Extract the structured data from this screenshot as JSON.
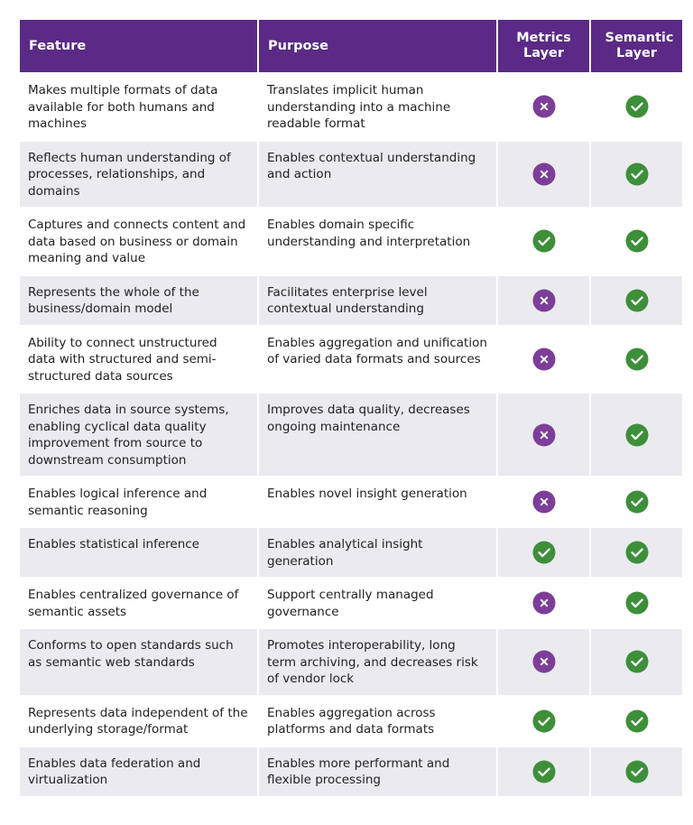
{
  "table": {
    "header": [
      "Feature",
      "Purpose",
      "Metrics Layer",
      "Semantic Layer"
    ],
    "rows": [
      {
        "feature": "Makes multiple formats of data available for both humans and machines",
        "purpose": "Translates implicit human understanding into a machine readable format",
        "metrics": false,
        "semantic": true
      },
      {
        "feature": "Reflects human understanding of processes, relationships, and domains",
        "purpose": "Enables contextual understanding and action",
        "metrics": false,
        "semantic": true
      },
      {
        "feature": "Captures and connects content and data based on business or domain meaning and value",
        "purpose": "Enables domain specific understanding and interpretation",
        "metrics": true,
        "semantic": true
      },
      {
        "feature": "Represents the whole of the business/domain model",
        "purpose": "Facilitates enterprise level contextual understanding",
        "metrics": false,
        "semantic": true
      },
      {
        "feature": "Ability to connect unstructured data with structured and semi-structured data sources",
        "purpose": "Enables aggregation and unification of varied data formats and sources",
        "metrics": false,
        "semantic": true
      },
      {
        "feature": "Enriches data in source systems, enabling cyclical data quality improvement from source to downstream consumption",
        "purpose": "Improves data quality, decreases ongoing maintenance",
        "metrics": false,
        "semantic": true
      },
      {
        "feature": "Enables logical inference and semantic reasoning",
        "purpose": "Enables novel insight generation",
        "metrics": false,
        "semantic": true
      },
      {
        "feature": "Enables statistical inference",
        "purpose": "Enables analytical insight generation",
        "metrics": true,
        "semantic": true
      },
      {
        "feature": "Enables centralized governance of semantic assets",
        "purpose": "Support centrally managed governance",
        "metrics": false,
        "semantic": true
      },
      {
        "feature": "Conforms to open standards such as semantic web standards",
        "purpose": "Promotes interoperability, long term archiving, and decreases risk of vendor lock",
        "metrics": false,
        "semantic": true
      },
      {
        "feature": "Represents data independent of the underlying storage/format",
        "purpose": "Enables aggregation across platforms and data formats",
        "metrics": true,
        "semantic": true
      },
      {
        "feature": "Enables data federation and virtualization",
        "purpose": "Enables more performant and flexible processing",
        "metrics": true,
        "semantic": true
      }
    ]
  }
}
